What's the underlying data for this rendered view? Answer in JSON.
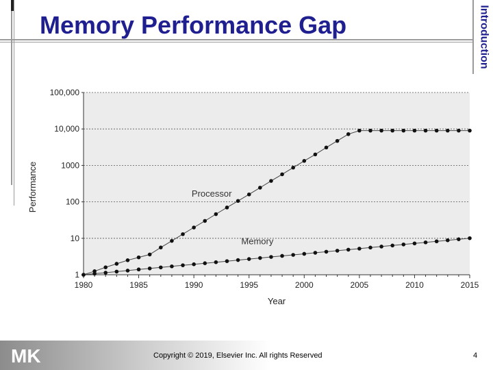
{
  "slide": {
    "title": "Memory Performance Gap",
    "side_label": "Introduction",
    "copyright": "Copyright © 2019, Elsevier Inc. All rights Reserved",
    "page_number": "4",
    "logo_text": "MK",
    "title_color": "#1f1f8f"
  },
  "chart_data": {
    "type": "line",
    "xlabel": "Year",
    "ylabel": "Performance",
    "xlim": [
      1980,
      2015
    ],
    "ylim": [
      1,
      100000
    ],
    "y_scale": "log",
    "x_ticks": [
      "1980",
      "1985",
      "1990",
      "1995",
      "2000",
      "2005",
      "2010",
      "2015"
    ],
    "y_ticks": [
      "1",
      "10",
      "100",
      "1000",
      "10,000",
      "100,000"
    ],
    "grid": "horizontal dotted",
    "series": [
      {
        "name": "Processor",
        "x": [
          1980,
          1981,
          1982,
          1983,
          1984,
          1985,
          1986,
          1987,
          1988,
          1989,
          1990,
          1991,
          1992,
          1993,
          1994,
          1995,
          1996,
          1997,
          1998,
          1999,
          2000,
          2001,
          2002,
          2003,
          2004,
          2005,
          2006,
          2007,
          2008,
          2009,
          2010,
          2011,
          2012,
          2013,
          2014,
          2015
        ],
        "y": [
          1,
          1.25,
          1.6,
          2,
          2.5,
          3,
          3.6,
          5.6,
          8.5,
          13,
          19.8,
          30,
          46,
          70,
          106,
          160,
          245,
          375,
          570,
          870,
          1330,
          2000,
          3100,
          4700,
          7200,
          9000,
          9000,
          9000,
          9000,
          9000,
          9000,
          9000,
          9000,
          9000,
          9000,
          9000
        ]
      },
      {
        "name": "Memory",
        "x": [
          1980,
          1981,
          1982,
          1983,
          1984,
          1985,
          1986,
          1987,
          1988,
          1989,
          1990,
          1991,
          1992,
          1993,
          1994,
          1995,
          1996,
          1997,
          1998,
          1999,
          2000,
          2001,
          2002,
          2003,
          2004,
          2005,
          2006,
          2007,
          2008,
          2009,
          2010,
          2011,
          2012,
          2013,
          2014,
          2015
        ],
        "y": [
          1,
          1.07,
          1.14,
          1.22,
          1.3,
          1.4,
          1.49,
          1.59,
          1.7,
          1.82,
          1.94,
          2.07,
          2.21,
          2.36,
          2.53,
          2.7,
          2.88,
          3.08,
          3.29,
          3.51,
          3.75,
          4.01,
          4.28,
          4.57,
          4.88,
          5.21,
          5.57,
          5.94,
          6.35,
          6.78,
          7.24,
          7.73,
          8.26,
          8.82,
          9.42,
          10.06
        ]
      }
    ],
    "colors": {
      "plot_bg": "#ececec",
      "line": "#444444",
      "marker": "#111111"
    }
  }
}
